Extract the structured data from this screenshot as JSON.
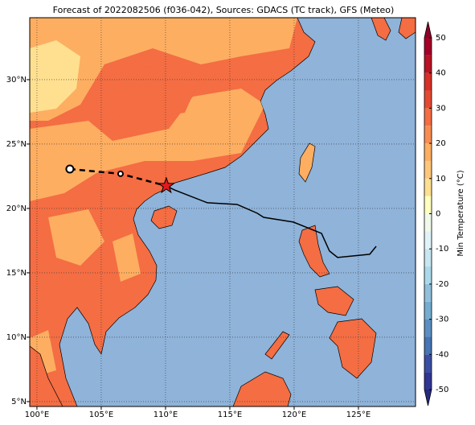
{
  "title": "Forecast of 2022082506 (f036-042), Sources: GDACS (TC track), GFS (Meteo)",
  "xlim": [
    99.44,
    129.44
  ],
  "ylim": [
    4.62,
    34.81
  ],
  "xticks": [
    {
      "value": 100,
      "label": "100°E"
    },
    {
      "value": 105,
      "label": "105°E"
    },
    {
      "value": 110,
      "label": "110°E"
    },
    {
      "value": 115,
      "label": "115°E"
    },
    {
      "value": 120,
      "label": "120°E"
    },
    {
      "value": 125,
      "label": "125°E"
    }
  ],
  "yticks": [
    {
      "value": 5,
      "label": "5°N"
    },
    {
      "value": 10,
      "label": "10°N"
    },
    {
      "value": 15,
      "label": "15°N"
    },
    {
      "value": 20,
      "label": "20°N"
    },
    {
      "value": 25,
      "label": "25°N"
    },
    {
      "value": 30,
      "label": "30°N"
    }
  ],
  "colorbar": {
    "label": "Min Temperature (°C)",
    "lim": [
      -50,
      50
    ],
    "ticks": [
      -50,
      -40,
      -30,
      -20,
      -10,
      0,
      10,
      20,
      30,
      40,
      50
    ],
    "colors": [
      "#313695",
      "#3a4fa3",
      "#4575b4",
      "#5b8fc2",
      "#74add1",
      "#91bfdb",
      "#abd9e9",
      "#c7e6f0",
      "#e0f3f8",
      "#f0f9ea",
      "#ffffbf",
      "#fee090",
      "#fdc67a",
      "#fdae61",
      "#f88d52",
      "#f46d43",
      "#e34a33",
      "#d73027",
      "#b91326",
      "#a50026"
    ],
    "under": "#252a80",
    "over": "#8e0027"
  },
  "track": {
    "past": [
      [
        102.56,
        23.06
      ],
      [
        106.5,
        22.69
      ],
      [
        110.06,
        21.75
      ]
    ],
    "forecast": [
      [
        110.06,
        21.75
      ],
      [
        110.69,
        21.44
      ],
      [
        113.25,
        20.44
      ],
      [
        115.56,
        20.31
      ],
      [
        117.13,
        19.63
      ],
      [
        117.63,
        19.31
      ],
      [
        119.94,
        18.94
      ],
      [
        122.13,
        18.06
      ],
      [
        122.75,
        16.69
      ],
      [
        123.38,
        16.19
      ],
      [
        125.88,
        16.44
      ],
      [
        126.38,
        17.06
      ]
    ]
  }
}
